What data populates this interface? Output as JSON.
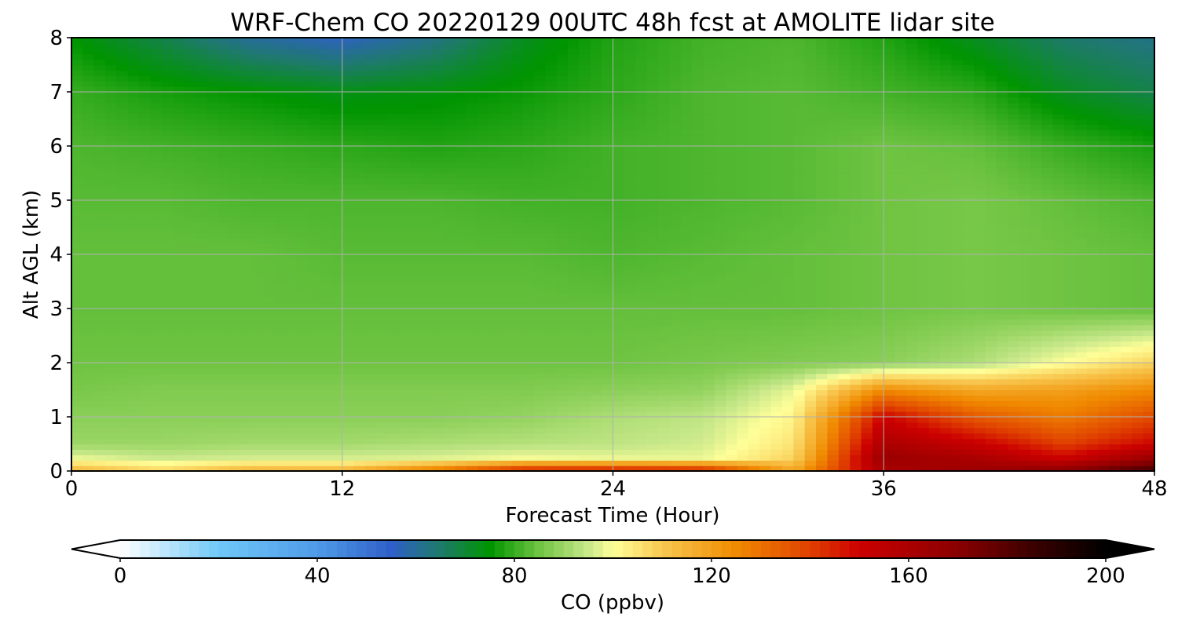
{
  "chart_data": {
    "type": "heatmap",
    "subtype": "filled-contour time-height cross-section",
    "title": "WRF-Chem CO  20220129 00UTC 48h fcst at AMOLITE lidar site",
    "xlabel": "Forecast Time (Hour)",
    "ylabel": "Alt AGL (km)",
    "x_ticks": [
      "0",
      "12",
      "24",
      "36",
      "48"
    ],
    "y_ticks": [
      "0",
      "1",
      "2",
      "3",
      "4",
      "5",
      "6",
      "7",
      "8"
    ],
    "xlim": [
      0,
      48
    ],
    "ylim": [
      0,
      8
    ],
    "grid": true,
    "x_hours": [
      0,
      4,
      8,
      12,
      16,
      20,
      24,
      28,
      32,
      36,
      40,
      44,
      48
    ],
    "y_km": [
      0,
      0.25,
      0.5,
      1,
      1.5,
      2,
      3,
      4,
      5,
      6,
      7,
      8
    ],
    "co_ppbv": [
      [
        115,
        108,
        116,
        116,
        130,
        148,
        150,
        148,
        118,
        160,
        165,
        170,
        185
      ],
      [
        98,
        95,
        96,
        96,
        97,
        99,
        98,
        98,
        108,
        165,
        160,
        150,
        165
      ],
      [
        90,
        90,
        91,
        91,
        92,
        93,
        94,
        96,
        105,
        160,
        152,
        140,
        150
      ],
      [
        88,
        88,
        88,
        88,
        88,
        89,
        92,
        94,
        102,
        150,
        135,
        128,
        138
      ],
      [
        86,
        87,
        87,
        87,
        87,
        87,
        88,
        89,
        98,
        125,
        118,
        120,
        125
      ],
      [
        85,
        85,
        85,
        85,
        85,
        85,
        85,
        86,
        87,
        88,
        92,
        100,
        108
      ],
      [
        84,
        84,
        84,
        84,
        84,
        84,
        84,
        84,
        84,
        85,
        86,
        85,
        84
      ],
      [
        84,
        84,
        84,
        83,
        83,
        83,
        82,
        83,
        84,
        85,
        86,
        85,
        84
      ],
      [
        83,
        83,
        82,
        82,
        82,
        81,
        81,
        82,
        83,
        85,
        86,
        84,
        82
      ],
      [
        82,
        81,
        80,
        79,
        78,
        79,
        81,
        82,
        83,
        85,
        84,
        80,
        77
      ],
      [
        80,
        77,
        75,
        73,
        74,
        76,
        79,
        82,
        83,
        81,
        79,
        72,
        68
      ],
      [
        75,
        68,
        60,
        56,
        62,
        72,
        78,
        81,
        82,
        78,
        72,
        65,
        62
      ]
    ],
    "colorbar": {
      "label": "CO  (ppbv)",
      "ticks": [
        "0",
        "40",
        "80",
        "120",
        "160",
        "200"
      ],
      "range": [
        0,
        200
      ],
      "extend": "both",
      "colormap_stops": [
        {
          "value": 0,
          "color": "#ffffff"
        },
        {
          "value": 20,
          "color": "#6fc8f8"
        },
        {
          "value": 40,
          "color": "#4f9be8"
        },
        {
          "value": 55,
          "color": "#2f5fc8"
        },
        {
          "value": 65,
          "color": "#1e7a6a"
        },
        {
          "value": 75,
          "color": "#009500"
        },
        {
          "value": 85,
          "color": "#6fc442"
        },
        {
          "value": 95,
          "color": "#c8e88a"
        },
        {
          "value": 100,
          "color": "#ffff99"
        },
        {
          "value": 110,
          "color": "#f8c850"
        },
        {
          "value": 125,
          "color": "#f08a00"
        },
        {
          "value": 140,
          "color": "#e04000"
        },
        {
          "value": 150,
          "color": "#cc0000"
        },
        {
          "value": 170,
          "color": "#8a0000"
        },
        {
          "value": 185,
          "color": "#3c0000"
        },
        {
          "value": 200,
          "color": "#000000"
        }
      ]
    }
  }
}
